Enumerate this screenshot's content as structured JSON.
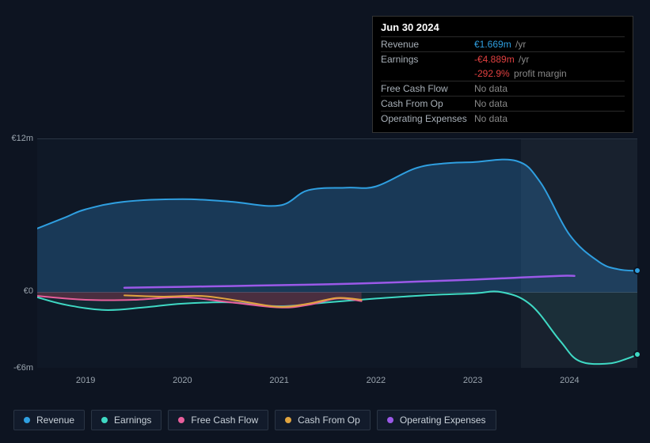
{
  "tooltip": {
    "date": "Jun 30 2024",
    "rows": [
      {
        "label": "Revenue",
        "value": "€1.669m",
        "unit": "/yr",
        "cls": "pos"
      },
      {
        "label": "Earnings",
        "value": "-€4.889m",
        "unit": "/yr",
        "cls": "neg"
      },
      {
        "label": "",
        "value": "-292.9%",
        "unit": "profit margin",
        "cls": "neg",
        "no_border": true
      },
      {
        "label": "Free Cash Flow",
        "value": "No data",
        "cls": "nodata"
      },
      {
        "label": "Cash From Op",
        "value": "No data",
        "cls": "nodata"
      },
      {
        "label": "Operating Expenses",
        "value": "No data",
        "cls": "nodata"
      }
    ]
  },
  "chart": {
    "type": "area-line",
    "background_color": "#0f1826",
    "page_background": "#0d1421",
    "y_axis": {
      "min": -6,
      "max": 12,
      "unit": "€m",
      "ticks": [
        {
          "v": 12,
          "label": "€12m"
        },
        {
          "v": 0,
          "label": "€0"
        },
        {
          "v": -6,
          "label": "-€6m"
        }
      ]
    },
    "x_axis": {
      "min": 2018.5,
      "max": 2024.7,
      "ticks": [
        2019,
        2020,
        2021,
        2022,
        2023,
        2024
      ]
    },
    "highlight_band": {
      "from": 2023.5,
      "to": 2024.7
    },
    "series": [
      {
        "name": "Revenue",
        "color": "#2f9fe0",
        "fill": "rgba(47,120,180,0.35)",
        "fill_to": 0,
        "points": [
          [
            2018.5,
            5.0
          ],
          [
            2018.8,
            5.9
          ],
          [
            2019.0,
            6.5
          ],
          [
            2019.4,
            7.1
          ],
          [
            2020.0,
            7.3
          ],
          [
            2020.5,
            7.1
          ],
          [
            2021.0,
            6.8
          ],
          [
            2021.3,
            8.0
          ],
          [
            2021.7,
            8.2
          ],
          [
            2022.0,
            8.3
          ],
          [
            2022.4,
            9.7
          ],
          [
            2022.7,
            10.1
          ],
          [
            2023.0,
            10.2
          ],
          [
            2023.45,
            10.3
          ],
          [
            2023.7,
            8.6
          ],
          [
            2024.0,
            4.5
          ],
          [
            2024.3,
            2.4
          ],
          [
            2024.5,
            1.8
          ],
          [
            2024.7,
            1.67
          ]
        ],
        "end_dot": true
      },
      {
        "name": "Earnings",
        "color": "#3fd9c4",
        "fill": "rgba(63,217,196,0.08)",
        "fill_to": 0,
        "points": [
          [
            2018.5,
            -0.4
          ],
          [
            2018.8,
            -1.0
          ],
          [
            2019.2,
            -1.4
          ],
          [
            2019.6,
            -1.2
          ],
          [
            2020.0,
            -0.9
          ],
          [
            2020.5,
            -0.8
          ],
          [
            2021.0,
            -1.1
          ],
          [
            2021.5,
            -0.8
          ],
          [
            2022.0,
            -0.5
          ],
          [
            2022.5,
            -0.25
          ],
          [
            2023.0,
            -0.1
          ],
          [
            2023.3,
            0.0
          ],
          [
            2023.6,
            -1.0
          ],
          [
            2023.9,
            -3.8
          ],
          [
            2024.1,
            -5.4
          ],
          [
            2024.4,
            -5.6
          ],
          [
            2024.6,
            -5.2
          ],
          [
            2024.7,
            -4.89
          ]
        ],
        "end_dot": true
      },
      {
        "name": "Free Cash Flow",
        "color": "#e85f9c",
        "fill": "rgba(180,60,90,0.35)",
        "fill_to": 0,
        "points": [
          [
            2018.5,
            -0.3
          ],
          [
            2019.0,
            -0.6
          ],
          [
            2019.5,
            -0.6
          ],
          [
            2020.0,
            -0.4
          ],
          [
            2020.5,
            -0.8
          ],
          [
            2021.0,
            -1.2
          ],
          [
            2021.3,
            -1.0
          ],
          [
            2021.6,
            -0.5
          ],
          [
            2021.85,
            -0.7
          ]
        ]
      },
      {
        "name": "Cash From Op",
        "color": "#e0a43f",
        "fill": "none",
        "points": [
          [
            2019.4,
            -0.25
          ],
          [
            2019.8,
            -0.35
          ],
          [
            2020.2,
            -0.3
          ],
          [
            2020.6,
            -0.7
          ],
          [
            2021.0,
            -1.15
          ],
          [
            2021.3,
            -0.9
          ],
          [
            2021.6,
            -0.45
          ],
          [
            2021.85,
            -0.6
          ]
        ]
      },
      {
        "name": "Operating Expenses",
        "color": "#9b59e8",
        "fill": "none",
        "width": 2.5,
        "points": [
          [
            2019.4,
            0.35
          ],
          [
            2020.0,
            0.42
          ],
          [
            2020.5,
            0.48
          ],
          [
            2021.0,
            0.55
          ],
          [
            2021.5,
            0.62
          ],
          [
            2022.0,
            0.72
          ],
          [
            2022.5,
            0.85
          ],
          [
            2023.0,
            0.98
          ],
          [
            2023.5,
            1.15
          ],
          [
            2023.9,
            1.28
          ],
          [
            2024.05,
            1.28
          ]
        ]
      }
    ],
    "legend": [
      {
        "label": "Revenue",
        "color": "#2f9fe0"
      },
      {
        "label": "Earnings",
        "color": "#3fd9c4"
      },
      {
        "label": "Free Cash Flow",
        "color": "#e85f9c"
      },
      {
        "label": "Cash From Op",
        "color": "#e0a43f"
      },
      {
        "label": "Operating Expenses",
        "color": "#9b59e8"
      }
    ]
  }
}
